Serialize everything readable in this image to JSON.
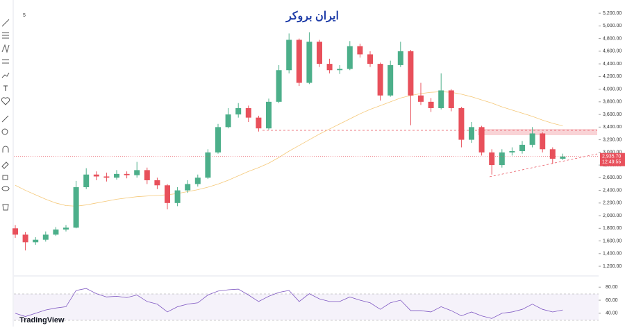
{
  "toolbar": {
    "interval": "5"
  },
  "logo": "ایران بروکر",
  "brand": "TradingView",
  "chart_data": {
    "type": "candlestick",
    "ylim": [
      1080,
      5300
    ],
    "yticks": [
      {
        "value": 1200,
        "label": "1,200.00"
      },
      {
        "value": 1400,
        "label": "1,400.00"
      },
      {
        "value": 1600,
        "label": "1,600.00"
      },
      {
        "value": 1800,
        "label": "1,800.00"
      },
      {
        "value": 2000,
        "label": "2,000.00"
      },
      {
        "value": 2200,
        "label": "2,200.00"
      },
      {
        "value": 2400,
        "label": "2,400.00"
      },
      {
        "value": 2600,
        "label": "2,600.00"
      },
      {
        "value": 2800,
        "label": "2,800.00"
      },
      {
        "value": 3000,
        "label": "3,000.00"
      },
      {
        "value": 3200,
        "label": "3,200.00"
      },
      {
        "value": 3400,
        "label": "3,400.00"
      },
      {
        "value": 3600,
        "label": "3,600.00"
      },
      {
        "value": 3800,
        "label": "3,800.00"
      },
      {
        "value": 4000,
        "label": "4,000.00"
      },
      {
        "value": 4200,
        "label": "4,200.00"
      },
      {
        "value": 4400,
        "label": "4,400.00"
      },
      {
        "value": 4600,
        "label": "4,600.00"
      },
      {
        "value": 4800,
        "label": "4,800.00"
      },
      {
        "value": 5000,
        "label": "5,000.00"
      },
      {
        "value": 5200,
        "label": "5,200.00"
      }
    ],
    "open": [
      1800,
      1700,
      1580,
      1620,
      1700,
      1780,
      1810,
      2450,
      2650,
      2620,
      2600,
      2660,
      2640,
      2720,
      2560,
      2480,
      2200,
      2400,
      2500,
      2600,
      3000,
      3400,
      3600,
      3700,
      3550,
      3380,
      3800,
      4300,
      4780,
      4100,
      4750,
      4400,
      4300,
      4320,
      4680,
      4550,
      4400,
      3900,
      4380,
      4600,
      3900,
      3800,
      3700,
      3980,
      3700,
      3200,
      3400,
      3000,
      2800,
      3000,
      3020,
      3120,
      3300,
      3050,
      2900
    ],
    "high": [
      1850,
      1740,
      1660,
      1750,
      1820,
      1850,
      2550,
      2750,
      2700,
      2680,
      2720,
      2700,
      2850,
      2760,
      2600,
      2500,
      2450,
      2560,
      2650,
      3050,
      3450,
      3700,
      3780,
      3740,
      3580,
      3850,
      4380,
      4880,
      4800,
      4900,
      4780,
      4480,
      4380,
      4760,
      4720,
      4600,
      4420,
      4450,
      4750,
      4620,
      4100,
      3860,
      4250,
      4000,
      3720,
      3480,
      3420,
      3050,
      3050,
      3080,
      3180,
      3400,
      3320,
      3080,
      2980
    ],
    "low": [
      1650,
      1450,
      1540,
      1590,
      1680,
      1750,
      1800,
      2420,
      2560,
      2540,
      2570,
      2590,
      2600,
      2500,
      2420,
      2100,
      2150,
      2360,
      2460,
      2580,
      2980,
      3380,
      3550,
      3480,
      3330,
      3360,
      3780,
      4250,
      4050,
      4080,
      4350,
      4250,
      4240,
      4300,
      4500,
      4350,
      3820,
      3880,
      4350,
      3430,
      3750,
      3640,
      3680,
      3650,
      3080,
      3150,
      2950,
      2650,
      2760,
      2950,
      2980,
      3080,
      3000,
      2820,
      2880
    ],
    "close": [
      1700,
      1580,
      1620,
      1700,
      1780,
      1810,
      2450,
      2650,
      2620,
      2600,
      2660,
      2640,
      2720,
      2560,
      2480,
      2200,
      2400,
      2500,
      2600,
      3000,
      3400,
      3600,
      3700,
      3550,
      3380,
      3800,
      4300,
      4780,
      4100,
      4750,
      4400,
      4300,
      4320,
      4680,
      4550,
      4400,
      3900,
      4380,
      4600,
      3900,
      3800,
      3700,
      3980,
      3700,
      3200,
      3400,
      3000,
      2800,
      3000,
      3020,
      3120,
      3300,
      3050,
      2900,
      2935
    ],
    "up_color": "#4caf8a",
    "down_color": "#e8505b",
    "ma": {
      "color": "#f5c878",
      "values": [
        2480,
        2400,
        2330,
        2260,
        2200,
        2160,
        2150,
        2170,
        2200,
        2230,
        2260,
        2280,
        2300,
        2310,
        2320,
        2330,
        2350,
        2380,
        2410,
        2450,
        2500,
        2560,
        2630,
        2700,
        2760,
        2830,
        2920,
        3020,
        3110,
        3200,
        3290,
        3370,
        3450,
        3530,
        3610,
        3680,
        3740,
        3800,
        3860,
        3900,
        3930,
        3950,
        3960,
        3950,
        3920,
        3880,
        3830,
        3780,
        3720,
        3670,
        3620,
        3570,
        3510,
        3460,
        3420
      ]
    },
    "last_price": {
      "value": 2935.7,
      "label": "2,935.70",
      "countdown": "12:49:55"
    },
    "rsi": {
      "color": "#7e57c2",
      "ylim": [
        26,
        93
      ],
      "yticks": [
        {
          "value": 80,
          "label": "80.00"
        },
        {
          "value": 60,
          "label": "60.00"
        },
        {
          "value": 40,
          "label": "40.00"
        }
      ],
      "values": [
        40,
        35,
        40,
        45,
        48,
        50,
        75,
        78,
        70,
        65,
        66,
        64,
        68,
        58,
        54,
        42,
        50,
        54,
        56,
        68,
        74,
        76,
        77,
        68,
        58,
        66,
        72,
        75,
        58,
        70,
        62,
        58,
        58,
        65,
        60,
        56,
        46,
        56,
        60,
        44,
        44,
        42,
        50,
        44,
        36,
        42,
        36,
        32,
        40,
        42,
        46,
        54,
        46,
        42,
        45
      ]
    }
  }
}
